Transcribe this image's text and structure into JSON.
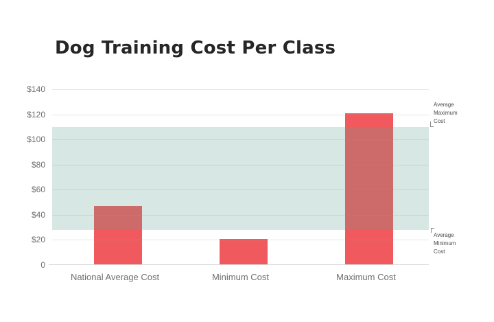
{
  "title": "Dog Training Cost Per Class",
  "colors": {
    "bar": "#f05a5e",
    "bar_in_band": "#cd6b6b",
    "band": "#d7e8e4",
    "title_text": "#262626",
    "axis_text": "#6e6e6e",
    "annotation_text": "#4a4a4a",
    "background": "#ffffff"
  },
  "chart_data": {
    "type": "bar",
    "title": "Dog Training Cost Per Class",
    "categories": [
      "National Average Cost",
      "Minimum Cost",
      "Maximum Cost"
    ],
    "values": [
      47,
      21,
      121
    ],
    "xlabel": "",
    "ylabel": "",
    "ylim": [
      0,
      140
    ],
    "ytick_step": 20,
    "ytick_labels": [
      "$140",
      "$120",
      "$100",
      "$80",
      "$60",
      "$40",
      "$20",
      "0"
    ],
    "grid": true,
    "legend": "none",
    "band": {
      "from": 28,
      "to": 110,
      "label_top": "Average Maximum Cost",
      "label_top_lines": [
        "Average",
        "Maximum",
        "Cost"
      ],
      "label_bottom": "Average Minimum Cost",
      "label_bottom_lines": [
        "Average",
        "Minimum",
        "Cost"
      ]
    }
  }
}
